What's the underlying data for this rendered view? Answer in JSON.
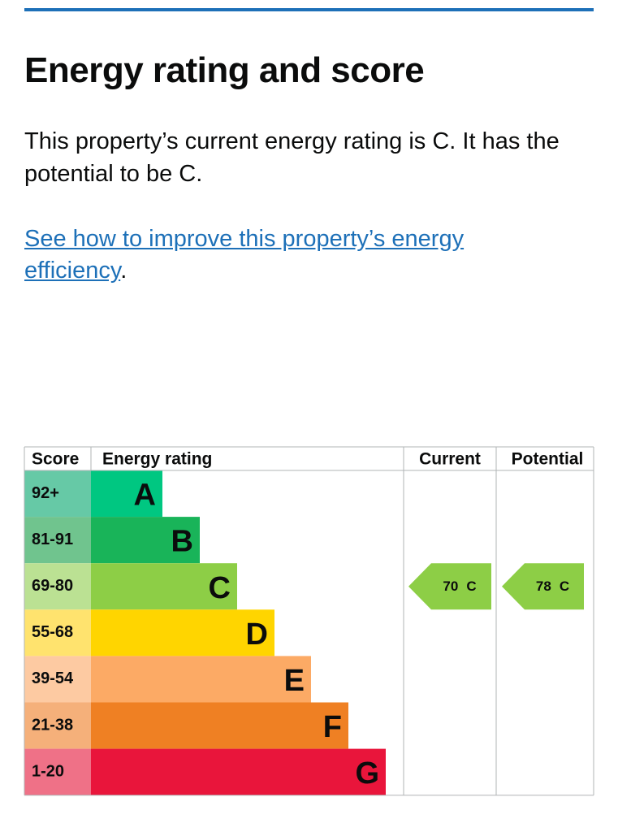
{
  "header": {
    "title": "Energy rating and score"
  },
  "intro": {
    "text": "This property’s current energy rating is C. It has the potential to be C."
  },
  "link": {
    "text": "See how to improve this property’s energy efficiency",
    "suffix": "."
  },
  "table": {
    "headers": [
      "Score",
      "Energy rating",
      "Current",
      "Potential"
    ],
    "rows": [
      {
        "score": "92+",
        "rating": "A"
      },
      {
        "score": "81-91",
        "rating": "B"
      },
      {
        "score": "69-80",
        "rating": "C"
      },
      {
        "score": "55-68",
        "rating": "D"
      },
      {
        "score": "39-54",
        "rating": "E"
      },
      {
        "score": "21-38",
        "rating": "F"
      },
      {
        "score": "1-20",
        "rating": "G"
      }
    ],
    "current": {
      "score": 70,
      "rating": "C"
    },
    "potential": {
      "score": 78,
      "rating": "C"
    }
  }
}
